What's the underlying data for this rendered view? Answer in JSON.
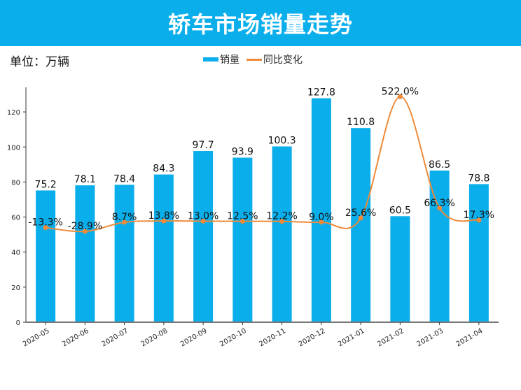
{
  "banner_title": "轿车市场销量走势",
  "unit_label": "单位：万辆",
  "colors": {
    "bar": "#0aaeeb",
    "line": "#ee8a3a",
    "banner": "#0aaeeb"
  },
  "chart_data": {
    "type": "bar+line",
    "title": "轿车市场销量走势",
    "categories": [
      "2020-05",
      "2020-06",
      "2020-07",
      "2020-08",
      "2020-09",
      "2020-10",
      "2020-11",
      "2020-12",
      "2021-01",
      "2021-02",
      "2021-03",
      "2021-04"
    ],
    "series": [
      {
        "name": "销量",
        "type": "bar",
        "axis": "primary",
        "values": [
          75.2,
          78.1,
          78.4,
          84.3,
          97.7,
          93.9,
          100.3,
          127.8,
          110.8,
          60.5,
          86.5,
          78.8
        ],
        "labels": [
          "75.2",
          "78.1",
          "78.4",
          "84.3",
          "97.7",
          "93.9",
          "100.3",
          "127.8",
          "110.8",
          "60.5",
          "86.5",
          "78.8"
        ]
      },
      {
        "name": "同比变化",
        "type": "line",
        "axis": "secondary",
        "smooth": true,
        "values": [
          -13.3,
          -28.9,
          8.7,
          13.8,
          13.0,
          12.5,
          12.2,
          9.0,
          25.6,
          522.0,
          66.3,
          17.3
        ],
        "labels": [
          "-13.3%",
          "-28.9%",
          "8.7%",
          "13.8%",
          "13.0%",
          "12.5%",
          "12.2%",
          "9.0%",
          "25.6%",
          "522.0%",
          "66.3%",
          "17.3%"
        ]
      }
    ],
    "yticks": [
      0,
      20,
      40,
      60,
      80,
      100,
      120
    ],
    "ylim": [
      0,
      134
    ],
    "y2lim": [
      -400,
      600
    ],
    "y2_visible": false,
    "grid": false,
    "legend": "top-center"
  }
}
